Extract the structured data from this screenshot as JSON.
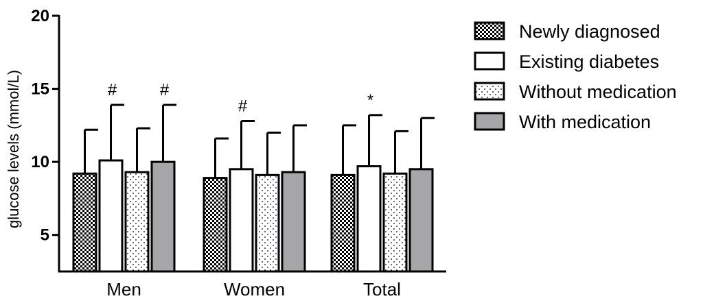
{
  "chart_data": {
    "type": "bar",
    "categories": [
      "Men",
      "Women",
      "Total"
    ],
    "ylabel": "glucose levels (mmol/L)",
    "ylim": [
      2.5,
      20
    ],
    "yticks": [
      5,
      10,
      15,
      20
    ],
    "series": [
      {
        "name": "Newly diagnosed",
        "values": [
          9.2,
          8.9,
          9.1
        ],
        "errors": [
          3.0,
          2.7,
          3.4
        ],
        "pattern": "checker",
        "color": "#000000"
      },
      {
        "name": "Existing diabetes",
        "values": [
          10.1,
          9.5,
          9.7
        ],
        "errors": [
          3.8,
          3.3,
          3.5
        ],
        "pattern": "white",
        "color": "#ffffff"
      },
      {
        "name": "Without medication",
        "values": [
          9.3,
          9.1,
          9.2
        ],
        "errors": [
          3.0,
          2.9,
          2.9
        ],
        "pattern": "dots",
        "color": "#ffffff"
      },
      {
        "name": "With medication",
        "values": [
          10.0,
          9.3,
          9.5
        ],
        "errors": [
          3.9,
          3.2,
          3.5
        ],
        "pattern": "gray",
        "color": "#a6a6a8"
      }
    ],
    "annotations": [
      {
        "category": "Men",
        "series": "Existing diabetes",
        "text": "#"
      },
      {
        "category": "Men",
        "series": "With medication",
        "text": "#"
      },
      {
        "category": "Women",
        "series": "Existing diabetes",
        "text": "#"
      },
      {
        "category": "Total",
        "series": "Existing diabetes",
        "text": "*"
      }
    ],
    "legend_position": "top-right",
    "grid": false
  }
}
